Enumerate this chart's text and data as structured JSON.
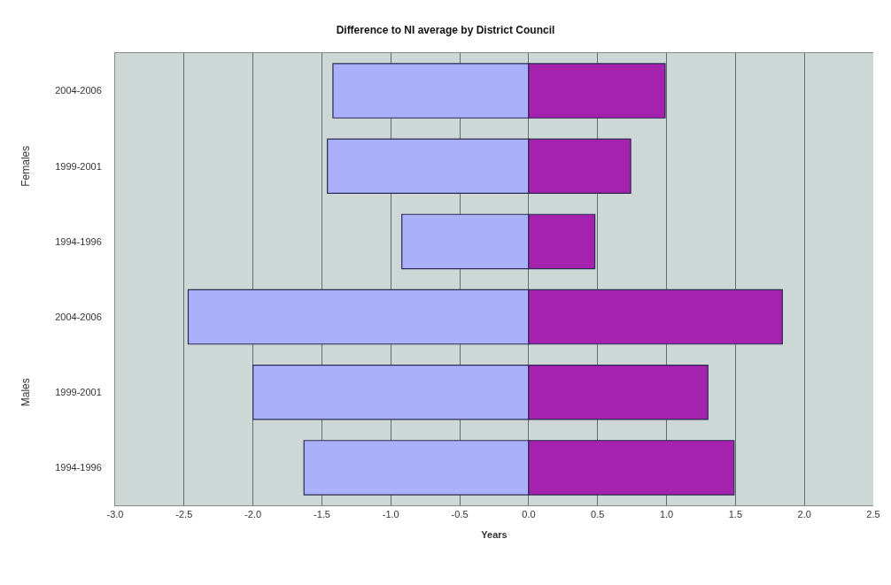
{
  "chart_data": {
    "type": "bar",
    "orientation": "horizontal",
    "stacked": true,
    "title": "Difference to NI average by District Council",
    "xlabel": "Years",
    "categories": [
      "2004-2006",
      "1999-2001",
      "1994-1996",
      "2004-2006",
      "1999-2001",
      "1994-1996"
    ],
    "series": [
      {
        "color": "#aab0fa",
        "values": [
          -1.42,
          -1.46,
          -0.92,
          -2.47,
          -2.0,
          -1.63
        ]
      },
      {
        "color": "#a522ae",
        "values": [
          0.99,
          0.74,
          0.48,
          1.84,
          1.3,
          1.49
        ]
      }
    ],
    "xlim": [
      -3,
      2.5
    ],
    "xticks": [
      {
        "value": -3,
        "label": "-3.0"
      },
      {
        "value": -2.5,
        "label": "-2.5"
      },
      {
        "value": -2,
        "label": "-2.0"
      },
      {
        "value": -1.5,
        "label": "-1.5"
      },
      {
        "value": -1,
        "label": "-1.0"
      },
      {
        "value": -0.5,
        "label": "-0.5"
      },
      {
        "value": 0,
        "label": "0.0"
      },
      {
        "value": 0.5,
        "label": "0.5"
      },
      {
        "value": 1,
        "label": "1.0"
      },
      {
        "value": 1.5,
        "label": "1.5"
      },
      {
        "value": 2,
        "label": "2.0"
      },
      {
        "value": 2.5,
        "label": "2.5"
      }
    ],
    "annotations": [
      "Females",
      "Males"
    ],
    "grid": "x"
  }
}
